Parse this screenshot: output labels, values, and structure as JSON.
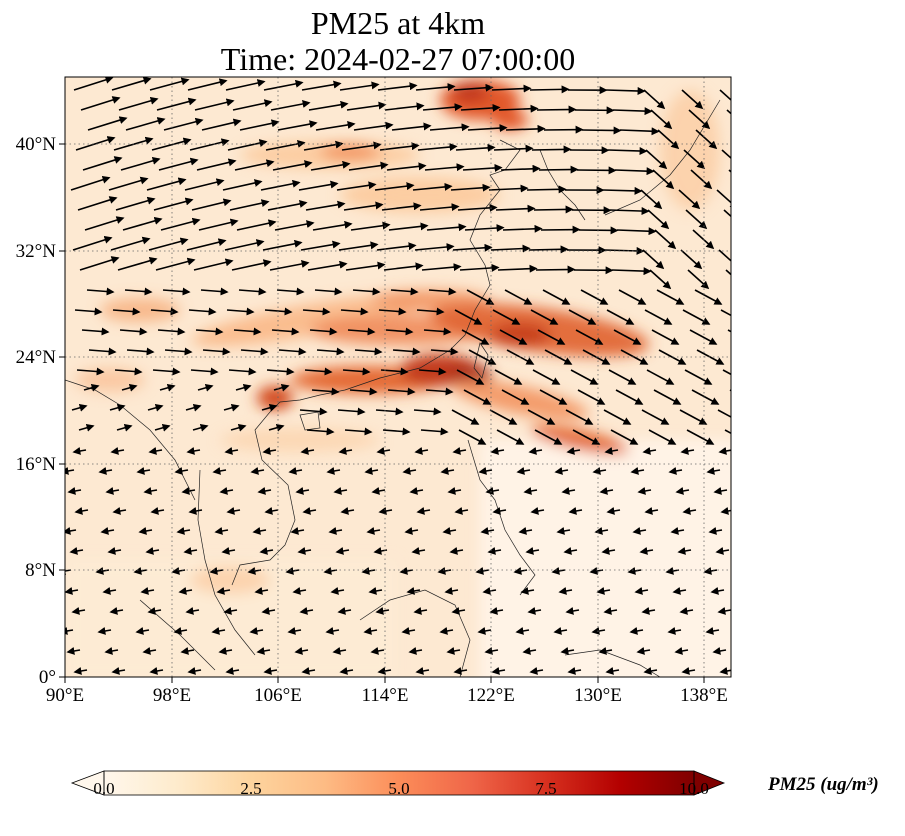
{
  "title": {
    "line1": "PM25 at 4km",
    "line2": "Time: 2024-02-27 07:00:00"
  },
  "map": {
    "extent": {
      "lon_min": 90,
      "lon_max": 140,
      "lat_min": 0,
      "lat_max": 45
    },
    "x_ticks": [
      "90°E",
      "98°E",
      "106°E",
      "114°E",
      "122°E",
      "130°E",
      "138°E"
    ],
    "y_ticks": [
      "0°",
      "8°N",
      "16°N",
      "24°N",
      "32°N",
      "40°N"
    ],
    "gridlines": "dotted",
    "field_colors": [
      "#fff5eb",
      "#fdd5ab",
      "#fd8c3b",
      "#d84801",
      "#7f2704"
    ]
  },
  "colorbar": {
    "title": "PM25 (ug/m³)",
    "ticks": [
      "0.0",
      "2.5",
      "5.0",
      "7.5",
      "10.0"
    ],
    "range": [
      0,
      10
    ],
    "extend": "both",
    "colormap": "OrRd"
  }
}
